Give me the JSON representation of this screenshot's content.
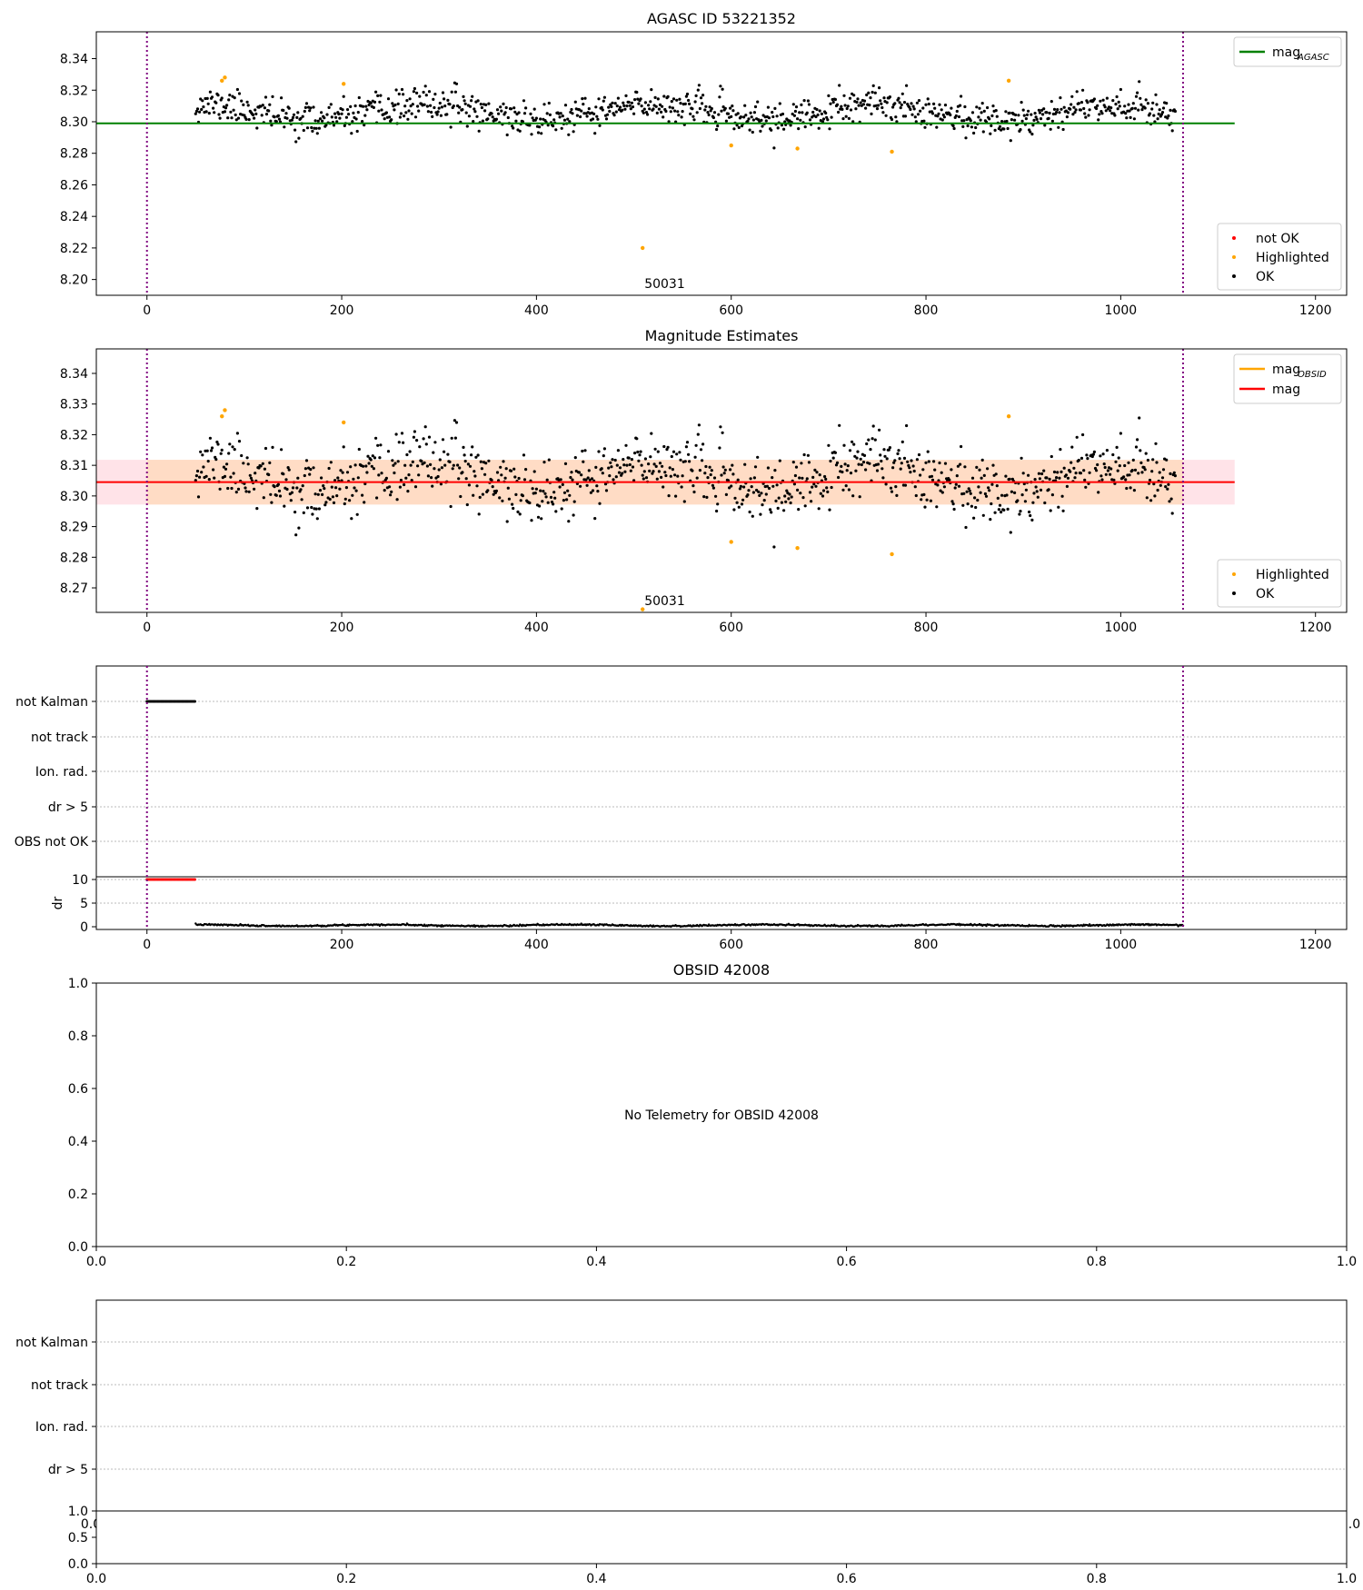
{
  "chart_data": [
    {
      "type": "scatter",
      "title": "AGASC ID 53221352",
      "xlim": [
        -52,
        1232
      ],
      "ylim": [
        8.19,
        8.357
      ],
      "xticks": [
        0,
        200,
        400,
        600,
        800,
        1000,
        1200
      ],
      "yticks": [
        8.2,
        8.22,
        8.24,
        8.26,
        8.28,
        8.3,
        8.32,
        8.34
      ],
      "ytick_labels": [
        "8.20",
        "8.22",
        "8.24",
        "8.26",
        "8.28",
        "8.30",
        "8.32",
        "8.34"
      ],
      "vlines": [
        0,
        1064
      ],
      "vline_color": "#800080",
      "series_ok": {
        "name": "OK",
        "color": "#000000",
        "n": 1007,
        "x_start": 50,
        "x_step": 1.0,
        "seed": 11,
        "base": 8.306,
        "amp": 0.005,
        "noise": 0.0085
      },
      "highlighted_points": [
        [
          77,
          8.326
        ],
        [
          80,
          8.328
        ],
        [
          202,
          8.324
        ],
        [
          600,
          8.285
        ],
        [
          668,
          8.283
        ],
        [
          765,
          8.281
        ],
        [
          885,
          8.326
        ],
        [
          509,
          8.22
        ]
      ],
      "highlight_color": "#ffa500",
      "mag_line": {
        "label": "mag",
        "subscript": "AGASC",
        "value": 8.299,
        "x_range": [
          -52,
          1117
        ],
        "color": "#008000"
      },
      "annotation": {
        "text": "50031",
        "x": 509,
        "y": 8.19
      },
      "legend_top": [
        {
          "label": "mag",
          "sub": "AGASC",
          "color": "#008000",
          "kind": "line"
        }
      ],
      "legend_bottom": [
        {
          "label": "not OK",
          "color": "#ff0000",
          "kind": "dot"
        },
        {
          "label": "Highlighted",
          "color": "#ffa500",
          "kind": "dot"
        },
        {
          "label": "OK",
          "color": "#000000",
          "kind": "dot"
        }
      ]
    },
    {
      "type": "scatter",
      "title": "Magnitude Estimates",
      "xlim": [
        -52,
        1232
      ],
      "ylim": [
        8.262,
        8.348
      ],
      "xticks": [
        0,
        200,
        400,
        600,
        800,
        1000,
        1200
      ],
      "yticks": [
        8.27,
        8.28,
        8.29,
        8.3,
        8.31,
        8.32,
        8.33,
        8.34
      ],
      "ytick_labels": [
        "8.27",
        "8.28",
        "8.29",
        "8.30",
        "8.31",
        "8.32",
        "8.33",
        "8.34"
      ],
      "vlines": [
        0,
        1064
      ],
      "vline_color": "#800080",
      "series_ok": {
        "name": "OK",
        "color": "#000000",
        "n": 1007,
        "x_start": 50,
        "x_step": 1.0,
        "seed": 11,
        "base": 8.306,
        "amp": 0.005,
        "noise": 0.0085
      },
      "highlighted_points": [
        [
          77,
          8.326
        ],
        [
          80,
          8.328
        ],
        [
          202,
          8.324
        ],
        [
          600,
          8.285
        ],
        [
          668,
          8.283
        ],
        [
          765,
          8.281
        ],
        [
          885,
          8.326
        ],
        [
          509,
          8.263
        ]
      ],
      "highlight_color": "#ffa500",
      "mag_line": {
        "label": "mag",
        "value": 8.3045,
        "x_range": [
          -52,
          1117
        ],
        "color": "#ff0000"
      },
      "band_outer": {
        "lo": 8.2972,
        "hi": 8.3118,
        "x_range": [
          -52,
          1117
        ],
        "color": "#ffc0cb"
      },
      "band_inner": {
        "lo": 8.2972,
        "hi": 8.3118,
        "x_range": [
          0,
          1064
        ],
        "color": "#ffdab9"
      },
      "obsid_line": {
        "label": "mag",
        "sub": "OBSID",
        "color": "#ffa500"
      },
      "annotation": {
        "text": "50031",
        "x": 509,
        "y": 8.262
      },
      "legend_top": [
        {
          "label": "mag",
          "sub": "OBSID",
          "color": "#ffa500",
          "kind": "line"
        },
        {
          "label": "mag",
          "sub": "",
          "color": "#ff0000",
          "kind": "line"
        }
      ],
      "legend_bottom": [
        {
          "label": "Highlighted",
          "color": "#ffa500",
          "kind": "dot"
        },
        {
          "label": "OK",
          "color": "#000000",
          "kind": "dot"
        }
      ]
    },
    {
      "type": "flags",
      "xlim": [
        -52,
        1232
      ],
      "xticks": [
        0,
        200,
        400,
        600,
        800,
        1000,
        1200
      ],
      "flag_labels": [
        "not Kalman",
        "not track",
        "Ion. rad.",
        "dr > 5",
        "OBS not OK"
      ],
      "not_kalman_range": [
        0,
        50
      ],
      "vlines": [
        0,
        1064
      ],
      "dr": {
        "ylabel": "dr",
        "yticks": [
          0,
          5,
          10
        ],
        "bad_range": [
          0,
          50
        ],
        "bad_value": 10,
        "good_range": [
          50,
          1064
        ],
        "good_level": 0.3
      }
    },
    {
      "type": "empty",
      "title": "OBSID 42008",
      "message": "No Telemetry for OBSID 42008",
      "xticks": [
        "0.0",
        "0.2",
        "0.4",
        "0.6",
        "0.8",
        "1.0"
      ],
      "yticks": [
        "0.0",
        "0.2",
        "0.4",
        "0.6",
        "0.8",
        "1.0"
      ]
    },
    {
      "type": "flags-empty",
      "flag_labels": [
        "not Kalman",
        "not track",
        "Ion. rad.",
        "dr > 5"
      ],
      "overlap_xticks": [
        "0.0",
        "1.0"
      ],
      "sub_yticks": [
        "0.0",
        "0.5",
        "1.0"
      ],
      "xticks": [
        "0.0",
        "0.2",
        "0.4",
        "0.6",
        "0.8",
        "1.0"
      ]
    }
  ]
}
